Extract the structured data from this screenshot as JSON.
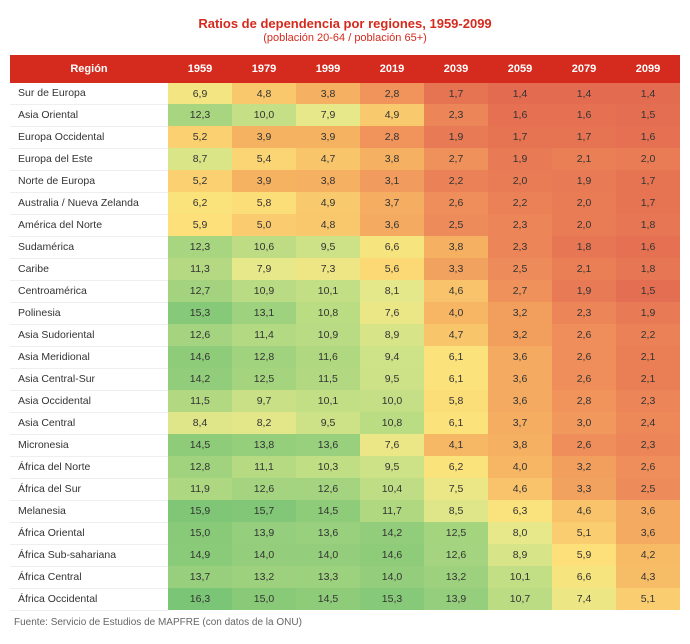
{
  "title": "Ratios de dependencia por regiones, 1959-2099",
  "subtitle": "(población 20-64 / población 65+)",
  "region_header": "Región",
  "years": [
    "1959",
    "1979",
    "1999",
    "2019",
    "2039",
    "2059",
    "2079",
    "2099"
  ],
  "source": "Fuente: Servicio de Estudios de MAPFRE (con datos de la ONU)",
  "color_scale": {
    "min": 1.4,
    "max": 16.3,
    "stops": [
      {
        "v": 1.4,
        "c": "#e36b50"
      },
      {
        "v": 2.5,
        "c": "#ee8b5a"
      },
      {
        "v": 4.0,
        "c": "#f6b663"
      },
      {
        "v": 6.0,
        "c": "#fde27a"
      },
      {
        "v": 8.0,
        "c": "#e6e88a"
      },
      {
        "v": 10.0,
        "c": "#c4df85"
      },
      {
        "v": 13.0,
        "c": "#9fd27e"
      },
      {
        "v": 16.3,
        "c": "#7bc576"
      }
    ]
  },
  "rows": [
    {
      "region": "Sur de Europa",
      "vals": [
        6.9,
        4.8,
        3.8,
        2.8,
        1.7,
        1.4,
        1.4,
        1.4
      ]
    },
    {
      "region": "Asia Oriental",
      "vals": [
        12.3,
        10.0,
        7.9,
        4.9,
        2.3,
        1.6,
        1.6,
        1.5
      ]
    },
    {
      "region": "Europa Occidental",
      "vals": [
        5.2,
        3.9,
        3.9,
        2.8,
        1.9,
        1.7,
        1.7,
        1.6
      ]
    },
    {
      "region": "Europa del Este",
      "vals": [
        8.7,
        5.4,
        4.7,
        3.8,
        2.7,
        1.9,
        2.1,
        2.0
      ]
    },
    {
      "region": "Norte de Europa",
      "vals": [
        5.2,
        3.9,
        3.8,
        3.1,
        2.2,
        2.0,
        1.9,
        1.7
      ]
    },
    {
      "region": "Australia / Nueva Zelanda",
      "vals": [
        6.2,
        5.8,
        4.9,
        3.7,
        2.6,
        2.2,
        2.0,
        1.7
      ]
    },
    {
      "region": "América del Norte",
      "vals": [
        5.9,
        5.0,
        4.8,
        3.6,
        2.5,
        2.3,
        2.0,
        1.8
      ]
    },
    {
      "region": "Sudamérica",
      "vals": [
        12.3,
        10.6,
        9.5,
        6.6,
        3.8,
        2.3,
        1.8,
        1.6
      ]
    },
    {
      "region": "Caribe",
      "vals": [
        11.3,
        7.9,
        7.3,
        5.6,
        3.3,
        2.5,
        2.1,
        1.8
      ]
    },
    {
      "region": "Centroamérica",
      "vals": [
        12.7,
        10.9,
        10.1,
        8.1,
        4.6,
        2.7,
        1.9,
        1.5
      ]
    },
    {
      "region": "Polinesia",
      "vals": [
        15.3,
        13.1,
        10.8,
        7.6,
        4.0,
        3.2,
        2.3,
        1.9
      ]
    },
    {
      "region": "Asia Sudoriental",
      "vals": [
        12.6,
        11.4,
        10.9,
        8.9,
        4.7,
        3.2,
        2.6,
        2.2
      ]
    },
    {
      "region": "Asia Meridional",
      "vals": [
        14.6,
        12.8,
        11.6,
        9.4,
        6.1,
        3.6,
        2.6,
        2.1
      ]
    },
    {
      "region": "Asia Central-Sur",
      "vals": [
        14.2,
        12.5,
        11.5,
        9.5,
        6.1,
        3.6,
        2.6,
        2.1
      ]
    },
    {
      "region": "Asia Occidental",
      "vals": [
        11.5,
        9.7,
        10.1,
        10.0,
        5.8,
        3.6,
        2.8,
        2.3
      ]
    },
    {
      "region": "Asia Central",
      "vals": [
        8.4,
        8.2,
        9.5,
        10.8,
        6.1,
        3.7,
        3.0,
        2.4
      ]
    },
    {
      "region": "Micronesia",
      "vals": [
        14.5,
        13.8,
        13.6,
        7.6,
        4.1,
        3.8,
        2.6,
        2.3
      ]
    },
    {
      "region": "África del Norte",
      "vals": [
        12.8,
        11.1,
        10.3,
        9.5,
        6.2,
        4.0,
        3.2,
        2.6
      ]
    },
    {
      "region": "África del Sur",
      "vals": [
        11.9,
        12.6,
        12.6,
        10.4,
        7.5,
        4.6,
        3.3,
        2.5
      ]
    },
    {
      "region": "Melanesia",
      "vals": [
        15.9,
        15.7,
        14.5,
        11.7,
        8.5,
        6.3,
        4.6,
        3.6
      ]
    },
    {
      "region": "África Oriental",
      "vals": [
        15.0,
        13.9,
        13.6,
        14.2,
        12.5,
        8.0,
        5.1,
        3.6
      ]
    },
    {
      "region": "África Sub-sahariana",
      "vals": [
        14.9,
        14.0,
        14.0,
        14.6,
        12.6,
        8.9,
        5.9,
        4.2
      ]
    },
    {
      "region": "África Central",
      "vals": [
        13.7,
        13.2,
        13.3,
        14.0,
        13.2,
        10.1,
        6.6,
        4.3
      ]
    },
    {
      "region": "África Occidental",
      "vals": [
        16.3,
        15.0,
        14.5,
        15.3,
        13.9,
        10.7,
        7.4,
        5.1
      ]
    }
  ]
}
